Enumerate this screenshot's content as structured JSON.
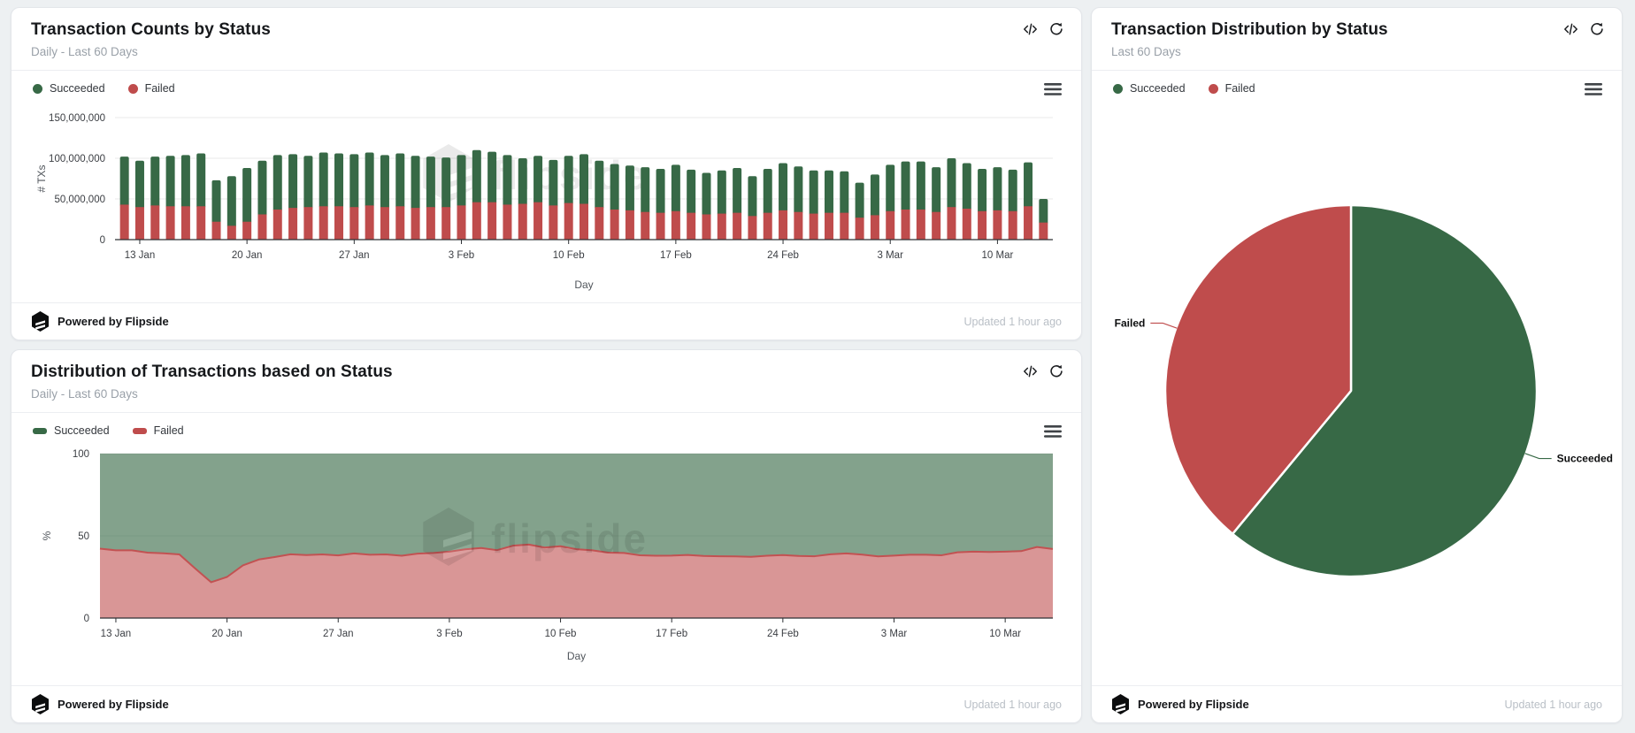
{
  "legend": {
    "succeeded": "Succeeded",
    "failed": "Failed"
  },
  "footer": {
    "powered_by": "Powered by Flipside",
    "updated": "Updated 1 hour ago"
  },
  "watermark_text": "flipside",
  "colors": {
    "succeeded": "#376946",
    "failed": "#bf4c4c",
    "area_succeeded_fill": "rgba(55,105,70,0.62)",
    "area_failed_fill": "rgba(192,80,80,0.60)",
    "area_failed_line": "#c25252",
    "grid": "#e8e8e8",
    "axis": "#2e3135",
    "tick_text": "#3b3e43",
    "axis_title_text": "#51565c"
  },
  "cards": {
    "tx_counts": {
      "title": "Transaction Counts by Status",
      "subtitle": "Daily - Last 60 Days"
    },
    "tx_share": {
      "title": "Distribution of Transactions based on Status",
      "subtitle": "Daily - Last 60 Days"
    },
    "tx_pie": {
      "title": "Transaction Distribution by Status",
      "subtitle": "Last 60 Days"
    }
  },
  "chart_data": [
    {
      "type": "bar",
      "stacked": true,
      "title": "Transaction Counts by Status",
      "xlabel": "Day",
      "ylabel": "# TXs",
      "unit": "millions of transactions",
      "ylim_millions": [
        0,
        150
      ],
      "yticks_millions": [
        0,
        50,
        100,
        150
      ],
      "ytick_labels": [
        "0",
        "50,000,000",
        "100,000,000",
        "150,000,000"
      ],
      "legend_position": "top-left",
      "categories": [
        "12 Jan",
        "13 Jan",
        "14 Jan",
        "15 Jan",
        "16 Jan",
        "17 Jan",
        "18 Jan",
        "19 Jan",
        "20 Jan",
        "21 Jan",
        "22 Jan",
        "23 Jan",
        "24 Jan",
        "25 Jan",
        "26 Jan",
        "27 Jan",
        "28 Jan",
        "29 Jan",
        "30 Jan",
        "31 Jan",
        "1 Feb",
        "2 Feb",
        "3 Feb",
        "4 Feb",
        "5 Feb",
        "6 Feb",
        "7 Feb",
        "8 Feb",
        "9 Feb",
        "10 Feb",
        "11 Feb",
        "12 Feb",
        "13 Feb",
        "14 Feb",
        "15 Feb",
        "16 Feb",
        "17 Feb",
        "18 Feb",
        "19 Feb",
        "20 Feb",
        "21 Feb",
        "22 Feb",
        "23 Feb",
        "24 Feb",
        "25 Feb",
        "26 Feb",
        "27 Feb",
        "28 Feb",
        "1 Mar",
        "2 Mar",
        "3 Mar",
        "4 Mar",
        "5 Mar",
        "6 Mar",
        "7 Mar",
        "8 Mar",
        "9 Mar",
        "10 Mar",
        "11 Mar",
        "12 Mar",
        "13 Mar"
      ],
      "x_tick_indices": [
        1,
        8,
        15,
        22,
        29,
        36,
        43,
        50,
        57
      ],
      "x_tick_labels": [
        "13 Jan",
        "20 Jan",
        "27 Jan",
        "3 Feb",
        "10 Feb",
        "17 Feb",
        "24 Feb",
        "3 Mar",
        "10 Mar"
      ],
      "series": [
        {
          "name": "Succeeded",
          "values_millions": [
            59,
            57,
            60,
            62,
            63,
            65,
            51,
            61,
            66,
            66,
            67,
            66,
            63,
            66,
            65,
            65,
            65,
            64,
            65,
            64,
            62,
            61,
            62,
            64,
            62,
            61,
            56,
            57,
            56,
            58,
            61,
            57,
            56,
            55,
            55,
            54,
            57,
            53,
            51,
            53,
            55,
            49,
            54,
            58,
            56,
            53,
            52,
            51,
            43,
            50,
            57,
            59,
            59,
            55,
            60,
            56,
            52,
            53,
            51,
            54,
            29
          ]
        },
        {
          "name": "Failed",
          "values_millions": [
            43,
            40,
            42,
            41,
            41,
            41,
            22,
            17,
            22,
            31,
            37,
            39,
            40,
            41,
            41,
            40,
            42,
            40,
            41,
            39,
            40,
            40,
            42,
            46,
            46,
            43,
            44,
            46,
            42,
            45,
            44,
            40,
            37,
            36,
            34,
            33,
            35,
            33,
            31,
            32,
            33,
            29,
            33,
            36,
            34,
            32,
            33,
            33,
            27,
            30,
            35,
            37,
            37,
            34,
            40,
            38,
            35,
            36,
            35,
            41,
            21
          ]
        }
      ]
    },
    {
      "type": "area",
      "stacked_percent": true,
      "title": "Distribution of Transactions based on Status",
      "xlabel": "Day",
      "ylabel": "%",
      "ylim": [
        0,
        100
      ],
      "yticks": [
        0,
        50,
        100
      ],
      "ytick_labels": [
        "0",
        "50",
        "100"
      ],
      "legend_position": "top-left",
      "x_tick_indices": [
        1,
        8,
        15,
        22,
        29,
        36,
        43,
        50,
        57
      ],
      "x_tick_labels": [
        "13 Jan",
        "20 Jan",
        "27 Jan",
        "3 Feb",
        "10 Feb",
        "17 Feb",
        "24 Feb",
        "3 Mar",
        "10 Mar"
      ],
      "series_note": "Succeeded percentage = 100 - Failed percentage (full stacked area)",
      "series": [
        {
          "name": "Failed",
          "values_pct": [
            42.2,
            41.2,
            41.2,
            39.8,
            39.4,
            38.7,
            30.1,
            21.8,
            25.0,
            32.0,
            35.6,
            37.1,
            38.8,
            38.3,
            38.7,
            38.1,
            39.3,
            38.5,
            38.7,
            37.9,
            39.2,
            39.6,
            40.4,
            41.8,
            42.6,
            41.3,
            44.0,
            44.7,
            42.9,
            43.7,
            41.9,
            41.2,
            39.8,
            39.6,
            38.2,
            37.9,
            38.0,
            38.4,
            37.8,
            37.6,
            37.5,
            37.2,
            37.9,
            38.3,
            37.8,
            37.6,
            38.8,
            39.3,
            38.6,
            37.5,
            38.0,
            38.5,
            38.5,
            38.2,
            40.0,
            40.4,
            40.2,
            40.4,
            40.7,
            43.2,
            42.0
          ]
        }
      ]
    },
    {
      "type": "pie",
      "title": "Transaction Distribution by Status",
      "labels": [
        "Succeeded",
        "Failed"
      ],
      "values_pct": [
        61,
        39
      ],
      "start_angle_deg": 0,
      "direction": "clockwise"
    }
  ]
}
